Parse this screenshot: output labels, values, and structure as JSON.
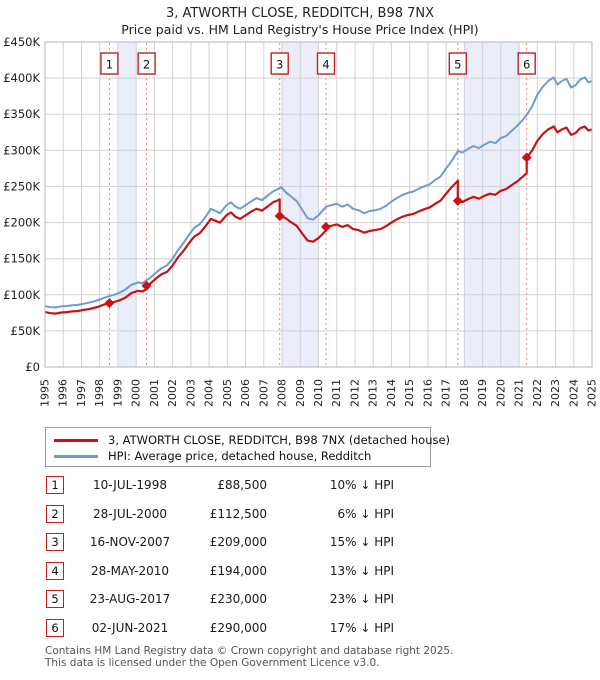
{
  "header": {
    "title": "3, ATWORTH CLOSE, REDDITCH, B98 7NX",
    "subtitle": "Price paid vs. HM Land Registry's House Price Index (HPI)"
  },
  "chart_data": {
    "type": "line",
    "title": "3, ATWORTH CLOSE, REDDITCH, B98 7NX",
    "subtitle": "Price paid vs. HM Land Registry's House Price Index (HPI)",
    "values_unit": "GBP thousands",
    "x_axis": {
      "min": 1995,
      "max": 2025,
      "ticks": [
        1995,
        1996,
        1997,
        1998,
        1999,
        2000,
        2001,
        2002,
        2003,
        2004,
        2005,
        2006,
        2007,
        2008,
        2009,
        2010,
        2011,
        2012,
        2013,
        2014,
        2015,
        2016,
        2017,
        2018,
        2019,
        2020,
        2021,
        2022,
        2023,
        2024,
        2025
      ]
    },
    "y_axis": {
      "min": 0,
      "max": 450,
      "tick_step": 50,
      "tick_labels": [
        "£0",
        "£50K",
        "£100K",
        "£150K",
        "£200K",
        "£250K",
        "£300K",
        "£350K",
        "£400K",
        "£450K"
      ]
    },
    "grid": true,
    "legend_position": "below",
    "ownership_bands": [
      [
        1999,
        2000
      ],
      [
        2008,
        2010
      ],
      [
        2018,
        2021
      ]
    ],
    "sales": [
      {
        "n": "1",
        "x": 1998.53,
        "value": 88.5
      },
      {
        "n": "2",
        "x": 2000.57,
        "value": 112.5
      },
      {
        "n": "3",
        "x": 2007.87,
        "value": 209
      },
      {
        "n": "4",
        "x": 2010.41,
        "value": 194
      },
      {
        "n": "5",
        "x": 2017.64,
        "value": 230
      },
      {
        "n": "6",
        "x": 2021.42,
        "value": 290
      }
    ],
    "series": [
      {
        "name": "HPI: Average price, detached house, Redditch",
        "color": "#6e9cd2",
        "width": 2,
        "points": [
          [
            1995.0,
            84
          ],
          [
            1995.3,
            83
          ],
          [
            1995.6,
            82.5
          ],
          [
            1995.9,
            84
          ],
          [
            1996.2,
            84.5
          ],
          [
            1996.5,
            85.5
          ],
          [
            1996.8,
            86
          ],
          [
            1997.1,
            87.5
          ],
          [
            1997.4,
            89
          ],
          [
            1997.7,
            91
          ],
          [
            1998.0,
            93.5
          ],
          [
            1998.25,
            96
          ],
          [
            1998.53,
            98
          ],
          [
            1998.8,
            100
          ],
          [
            1999.1,
            103
          ],
          [
            1999.4,
            107
          ],
          [
            1999.75,
            114
          ],
          [
            2000.1,
            117
          ],
          [
            2000.35,
            116
          ],
          [
            2000.57,
            120
          ],
          [
            2000.8,
            124
          ],
          [
            2001.1,
            131
          ],
          [
            2001.4,
            137
          ],
          [
            2001.7,
            141
          ],
          [
            2002.0,
            150
          ],
          [
            2002.3,
            162
          ],
          [
            2002.6,
            172
          ],
          [
            2002.9,
            183
          ],
          [
            2003.2,
            193
          ],
          [
            2003.5,
            198
          ],
          [
            2003.8,
            208
          ],
          [
            2004.1,
            219
          ],
          [
            2004.35,
            216
          ],
          [
            2004.6,
            213
          ],
          [
            2004.95,
            224
          ],
          [
            2005.2,
            228
          ],
          [
            2005.45,
            222
          ],
          [
            2005.7,
            219
          ],
          [
            2006.0,
            224
          ],
          [
            2006.3,
            229
          ],
          [
            2006.6,
            234
          ],
          [
            2006.9,
            231
          ],
          [
            2007.2,
            237
          ],
          [
            2007.5,
            243
          ],
          [
            2007.75,
            246
          ],
          [
            2007.95,
            249
          ],
          [
            2008.2,
            242
          ],
          [
            2008.5,
            236
          ],
          [
            2008.8,
            230
          ],
          [
            2009.1,
            218
          ],
          [
            2009.4,
            206
          ],
          [
            2009.7,
            204
          ],
          [
            2010.0,
            210
          ],
          [
            2010.41,
            222
          ],
          [
            2010.7,
            224
          ],
          [
            2011.0,
            226
          ],
          [
            2011.3,
            222
          ],
          [
            2011.6,
            225
          ],
          [
            2011.9,
            219
          ],
          [
            2012.2,
            217
          ],
          [
            2012.5,
            213
          ],
          [
            2012.8,
            216
          ],
          [
            2013.1,
            217
          ],
          [
            2013.4,
            219
          ],
          [
            2013.7,
            223
          ],
          [
            2014.0,
            229
          ],
          [
            2014.3,
            234
          ],
          [
            2014.6,
            238
          ],
          [
            2014.9,
            241
          ],
          [
            2015.2,
            243
          ],
          [
            2015.5,
            247
          ],
          [
            2015.8,
            250
          ],
          [
            2016.1,
            253
          ],
          [
            2016.4,
            259
          ],
          [
            2016.7,
            264
          ],
          [
            2017.0,
            275
          ],
          [
            2017.3,
            285
          ],
          [
            2017.64,
            299
          ],
          [
            2017.9,
            297
          ],
          [
            2018.2,
            302
          ],
          [
            2018.5,
            306
          ],
          [
            2018.8,
            303
          ],
          [
            2019.1,
            308
          ],
          [
            2019.4,
            312
          ],
          [
            2019.7,
            310
          ],
          [
            2020.0,
            317
          ],
          [
            2020.3,
            320
          ],
          [
            2020.6,
            327
          ],
          [
            2020.9,
            334
          ],
          [
            2021.2,
            342
          ],
          [
            2021.42,
            349
          ],
          [
            2021.7,
            360
          ],
          [
            2022.0,
            377
          ],
          [
            2022.3,
            388
          ],
          [
            2022.6,
            396
          ],
          [
            2022.9,
            401
          ],
          [
            2023.1,
            391
          ],
          [
            2023.35,
            396
          ],
          [
            2023.6,
            399
          ],
          [
            2023.85,
            387
          ],
          [
            2024.1,
            390
          ],
          [
            2024.35,
            398
          ],
          [
            2024.6,
            401
          ],
          [
            2024.8,
            394
          ],
          [
            2025.0,
            396
          ]
        ]
      },
      {
        "name": "3, ATWORTH CLOSE, REDDITCH, B98 7NX (detached house)",
        "color": "#cc1111",
        "width": 2.2,
        "points": [
          [
            1995.0,
            76
          ],
          [
            1995.3,
            74.5
          ],
          [
            1995.6,
            74
          ],
          [
            1995.9,
            75.5
          ],
          [
            1996.2,
            76
          ],
          [
            1996.5,
            77
          ],
          [
            1996.8,
            77.5
          ],
          [
            1997.1,
            79
          ],
          [
            1997.4,
            80
          ],
          [
            1997.7,
            82
          ],
          [
            1998.0,
            84
          ],
          [
            1998.25,
            86.5
          ],
          [
            1998.53,
            88.5
          ],
          [
            1998.8,
            90
          ],
          [
            1999.1,
            92.5
          ],
          [
            1999.4,
            96
          ],
          [
            1999.75,
            102.5
          ],
          [
            2000.1,
            105.5
          ],
          [
            2000.35,
            104.5
          ],
          [
            2000.57,
            108
          ],
          [
            2000.57,
            112.5
          ],
          [
            2000.8,
            116
          ],
          [
            2001.1,
            123
          ],
          [
            2001.4,
            128.5
          ],
          [
            2001.7,
            132
          ],
          [
            2002.0,
            140.5
          ],
          [
            2002.3,
            152
          ],
          [
            2002.6,
            161
          ],
          [
            2002.9,
            171.5
          ],
          [
            2003.2,
            181
          ],
          [
            2003.5,
            185.5
          ],
          [
            2003.8,
            195
          ],
          [
            2004.1,
            205
          ],
          [
            2004.35,
            202.5
          ],
          [
            2004.6,
            200
          ],
          [
            2004.95,
            210
          ],
          [
            2005.2,
            214
          ],
          [
            2005.45,
            208
          ],
          [
            2005.7,
            205
          ],
          [
            2006.0,
            210
          ],
          [
            2006.3,
            215
          ],
          [
            2006.6,
            219
          ],
          [
            2006.9,
            216.5
          ],
          [
            2007.2,
            222
          ],
          [
            2007.5,
            228
          ],
          [
            2007.75,
            230.5
          ],
          [
            2007.87,
            232
          ],
          [
            2007.87,
            209
          ],
          [
            2008.2,
            206
          ],
          [
            2008.5,
            200.5
          ],
          [
            2008.8,
            195.5
          ],
          [
            2009.1,
            185
          ],
          [
            2009.4,
            175
          ],
          [
            2009.7,
            173.5
          ],
          [
            2010.0,
            178.5
          ],
          [
            2010.41,
            189
          ],
          [
            2010.41,
            194
          ],
          [
            2010.7,
            195.5
          ],
          [
            2011.0,
            197.5
          ],
          [
            2011.3,
            194
          ],
          [
            2011.6,
            196.5
          ],
          [
            2011.9,
            191
          ],
          [
            2012.2,
            189.5
          ],
          [
            2012.5,
            186
          ],
          [
            2012.8,
            188.5
          ],
          [
            2013.1,
            189.5
          ],
          [
            2013.4,
            191
          ],
          [
            2013.7,
            195
          ],
          [
            2014.0,
            200
          ],
          [
            2014.3,
            204.5
          ],
          [
            2014.6,
            208
          ],
          [
            2014.9,
            210.5
          ],
          [
            2015.2,
            212
          ],
          [
            2015.5,
            215.5
          ],
          [
            2015.8,
            218.5
          ],
          [
            2016.1,
            221
          ],
          [
            2016.4,
            226
          ],
          [
            2016.7,
            230.5
          ],
          [
            2017.0,
            240
          ],
          [
            2017.3,
            249
          ],
          [
            2017.64,
            258
          ],
          [
            2017.64,
            230
          ],
          [
            2017.9,
            228.5
          ],
          [
            2018.2,
            232.5
          ],
          [
            2018.5,
            235.5
          ],
          [
            2018.8,
            233
          ],
          [
            2019.1,
            237
          ],
          [
            2019.4,
            240
          ],
          [
            2019.7,
            238.5
          ],
          [
            2020.0,
            244
          ],
          [
            2020.3,
            246.5
          ],
          [
            2020.6,
            252
          ],
          [
            2020.9,
            257
          ],
          [
            2021.2,
            263.5
          ],
          [
            2021.42,
            268.5
          ],
          [
            2021.42,
            290
          ],
          [
            2021.7,
            299
          ],
          [
            2022.0,
            313
          ],
          [
            2022.3,
            322.5
          ],
          [
            2022.6,
            329
          ],
          [
            2022.9,
            333
          ],
          [
            2023.1,
            325
          ],
          [
            2023.35,
            329
          ],
          [
            2023.6,
            331.5
          ],
          [
            2023.85,
            321.5
          ],
          [
            2024.1,
            324
          ],
          [
            2024.35,
            330.5
          ],
          [
            2024.6,
            333
          ],
          [
            2024.8,
            327.5
          ],
          [
            2025.0,
            329
          ]
        ]
      }
    ],
    "colors": {
      "property_line": "#cc1111",
      "hpi_line": "#6e9cd2",
      "sale_dashed_line": "#f28080",
      "ownership_band": "#e9eefa",
      "gridline": "#d2d2d2",
      "plot_border": "#b5b5b5",
      "badge_border": "#c02020"
    }
  },
  "legend": {
    "items": [
      {
        "label": "3, ATWORTH CLOSE, REDDITCH, B98 7NX (detached house)",
        "color": "#cc1111"
      },
      {
        "label": "HPI: Average price, detached house, Redditch",
        "color": "#6e9cd2"
      }
    ]
  },
  "table": {
    "rows": [
      {
        "num": "1",
        "date": "10-JUL-1998",
        "price": "£88,500",
        "vs_hpi": "10% ↓ HPI"
      },
      {
        "num": "2",
        "date": "28-JUL-2000",
        "price": "£112,500",
        "vs_hpi": "6% ↓ HPI"
      },
      {
        "num": "3",
        "date": "16-NOV-2007",
        "price": "£209,000",
        "vs_hpi": "15% ↓ HPI"
      },
      {
        "num": "4",
        "date": "28-MAY-2010",
        "price": "£194,000",
        "vs_hpi": "13% ↓ HPI"
      },
      {
        "num": "5",
        "date": "23-AUG-2017",
        "price": "£230,000",
        "vs_hpi": "23% ↓ HPI"
      },
      {
        "num": "6",
        "date": "02-JUN-2021",
        "price": "£290,000",
        "vs_hpi": "17% ↓ HPI"
      }
    ]
  },
  "footer": {
    "line1": "Contains HM Land Registry data © Crown copyright and database right 2025.",
    "line2": "This data is licensed under the Open Government Licence v3.0."
  }
}
